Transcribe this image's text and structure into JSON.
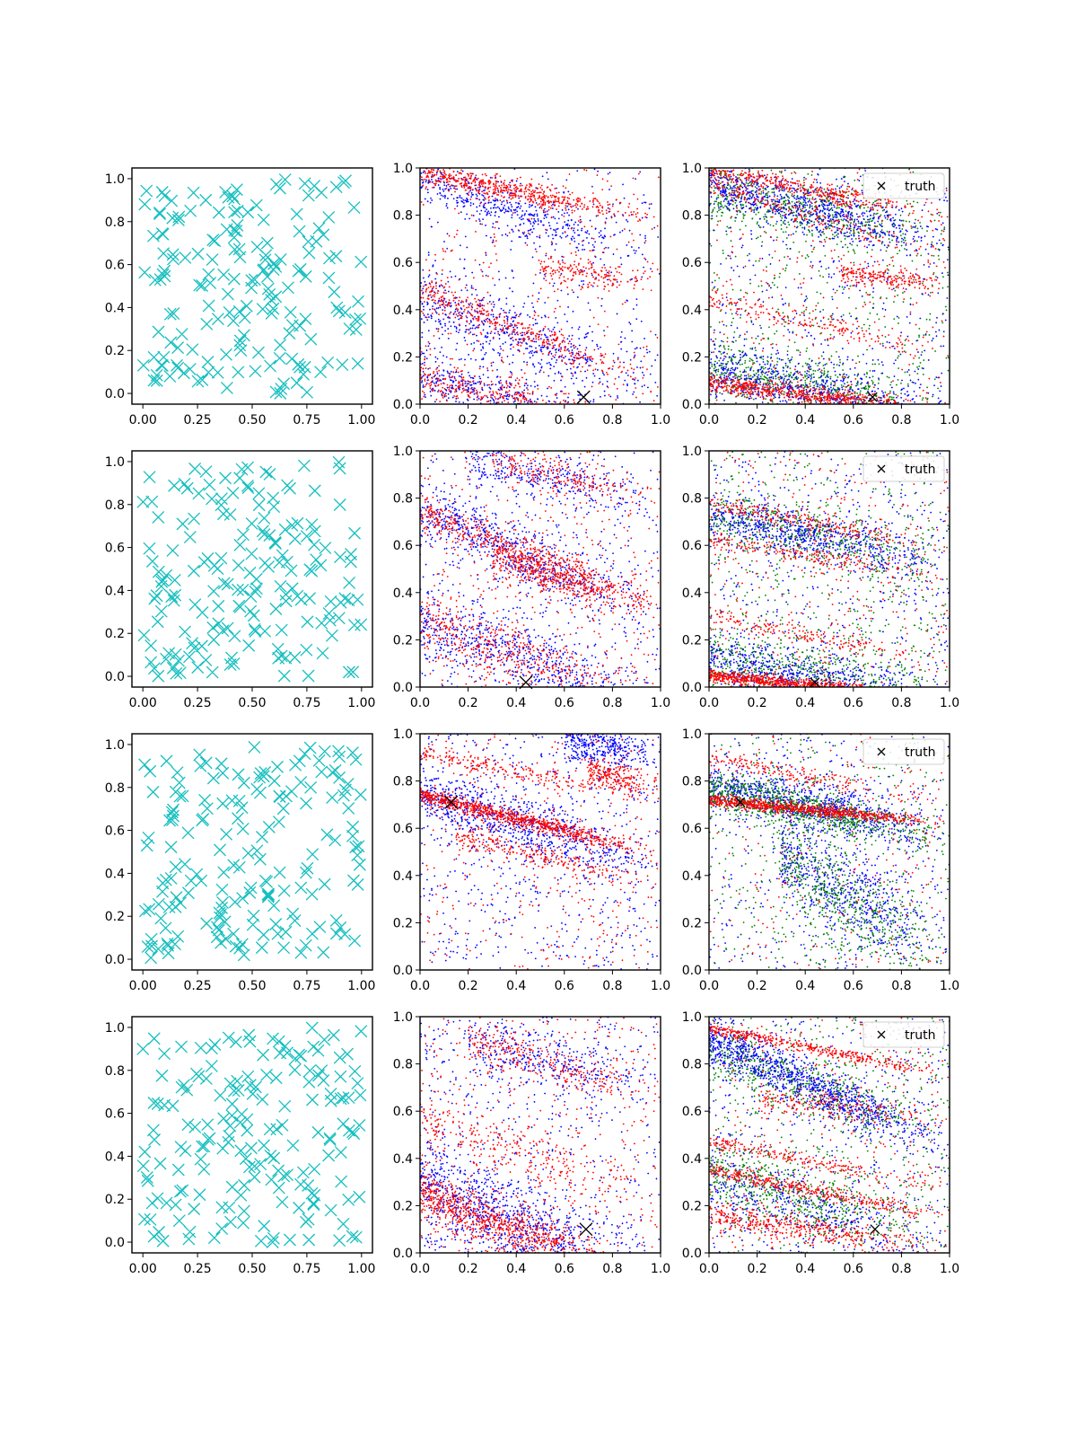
{
  "figure": {
    "rows": 4,
    "columns": 3,
    "description_of_columns": [
      "candidate points",
      "two-colour posterior samples",
      "three-colour posterior samples with truth marker"
    ]
  },
  "chart_data": [
    {
      "type": "scatter",
      "row": 0,
      "col": 0,
      "title": "",
      "xlim": [
        -0.05,
        1.05
      ],
      "ylim": [
        -0.05,
        1.05
      ],
      "xticks": [
        "0.00",
        "0.25",
        "0.50",
        "0.75",
        "1.00"
      ],
      "yticks": [
        "0.0",
        "0.2",
        "0.4",
        "0.6",
        "0.8",
        "1.0"
      ],
      "series": [
        {
          "name": "points",
          "color": "#17bfbf",
          "marker": "x",
          "count": 180,
          "seed": 11
        }
      ]
    },
    {
      "type": "scatter",
      "row": 0,
      "col": 1,
      "title": "",
      "xlim": [
        0,
        1
      ],
      "ylim": [
        0,
        1
      ],
      "xticks": [
        "0.0",
        "0.2",
        "0.4",
        "0.6",
        "0.8",
        "1.0"
      ],
      "yticks": [
        "0.0",
        "0.2",
        "0.4",
        "0.6",
        "0.8",
        "1.0"
      ],
      "series": [
        {
          "name": "blue samples",
          "color": "#0000ff",
          "count": 1800,
          "seed": 21,
          "bands": [
            {
              "x0": 0,
              "y0": 0.96,
              "slope": -0.35,
              "spread": 0.05,
              "weight": 2
            },
            {
              "x0": 0,
              "y0": 0.45,
              "slope": -0.4,
              "spread": 0.07,
              "weight": 2
            },
            {
              "x0": 0,
              "y0": 0.12,
              "slope": -0.3,
              "spread": 0.06,
              "weight": 2
            }
          ]
        },
        {
          "name": "red samples",
          "color": "#ff0000",
          "count": 1800,
          "seed": 22,
          "bands": [
            {
              "x0": 0,
              "y0": 0.98,
              "slope": -0.2,
              "spread": 0.025,
              "weight": 3
            },
            {
              "x0": 0,
              "y0": 0.48,
              "slope": -0.4,
              "spread": 0.03,
              "weight": 2
            },
            {
              "x0": 0,
              "y0": 0.12,
              "slope": -0.25,
              "spread": 0.04,
              "weight": 2
            },
            {
              "x0": 0.5,
              "y0": 0.58,
              "slope": -0.15,
              "spread": 0.03,
              "weight": 1
            }
          ]
        }
      ],
      "truth": {
        "x": 0.68,
        "y": 0.03
      }
    },
    {
      "type": "scatter",
      "row": 0,
      "col": 2,
      "title": "",
      "xlim": [
        0,
        1
      ],
      "ylim": [
        0,
        1
      ],
      "xticks": [
        "0.0",
        "0.2",
        "0.4",
        "0.6",
        "0.8",
        "1.0"
      ],
      "yticks": [
        "0.0",
        "0.2",
        "0.4",
        "0.6",
        "0.8",
        "1.0"
      ],
      "series": [
        {
          "name": "green samples",
          "color": "#008000",
          "count": 1500,
          "seed": 31,
          "bands": [
            {
              "x0": 0,
              "y0": 0.9,
              "slope": -0.2,
              "spread": 0.06,
              "weight": 2
            },
            {
              "x0": 0,
              "y0": 0.15,
              "slope": -0.15,
              "spread": 0.06,
              "weight": 2
            }
          ]
        },
        {
          "name": "blue samples",
          "color": "#0000ff",
          "count": 1800,
          "seed": 32,
          "bands": [
            {
              "x0": 0,
              "y0": 0.93,
              "slope": -0.25,
              "spread": 0.05,
              "weight": 2
            },
            {
              "x0": 0,
              "y0": 0.15,
              "slope": -0.2,
              "spread": 0.06,
              "weight": 2
            }
          ]
        },
        {
          "name": "red samples",
          "color": "#ff0000",
          "count": 1900,
          "seed": 33,
          "bands": [
            {
              "x0": 0,
              "y0": 0.99,
              "slope": -0.2,
              "spread": 0.02,
              "weight": 2
            },
            {
              "x0": 0,
              "y0": 0.92,
              "slope": -0.3,
              "spread": 0.02,
              "weight": 1
            },
            {
              "x0": 0,
              "y0": 0.45,
              "slope": -0.25,
              "spread": 0.025,
              "weight": 1
            },
            {
              "x0": 0,
              "y0": 0.09,
              "slope": -0.12,
              "spread": 0.02,
              "weight": 3
            },
            {
              "x0": 0.55,
              "y0": 0.55,
              "slope": -0.1,
              "spread": 0.02,
              "weight": 1
            }
          ]
        }
      ],
      "truth": {
        "x": 0.68,
        "y": 0.03
      },
      "legend": {
        "label": "truth",
        "location": "upper right"
      }
    },
    {
      "type": "scatter",
      "row": 1,
      "col": 0,
      "title": "",
      "xlim": [
        -0.05,
        1.05
      ],
      "ylim": [
        -0.05,
        1.05
      ],
      "xticks": [
        "0.00",
        "0.25",
        "0.50",
        "0.75",
        "1.00"
      ],
      "yticks": [
        "0.0",
        "0.2",
        "0.4",
        "0.6",
        "0.8",
        "1.0"
      ],
      "series": [
        {
          "name": "points",
          "color": "#17bfbf",
          "marker": "x",
          "count": 180,
          "seed": 12
        }
      ]
    },
    {
      "type": "scatter",
      "row": 1,
      "col": 1,
      "title": "",
      "xlim": [
        0,
        1
      ],
      "ylim": [
        0,
        1
      ],
      "xticks": [
        "0.0",
        "0.2",
        "0.4",
        "0.6",
        "0.8",
        "1.0"
      ],
      "yticks": [
        "0.0",
        "0.2",
        "0.4",
        "0.6",
        "0.8",
        "1.0"
      ],
      "series": [
        {
          "name": "blue samples",
          "color": "#0000ff",
          "count": 1900,
          "seed": 41,
          "bands": [
            {
              "x0": 0,
              "y0": 0.75,
              "slope": -0.45,
              "spread": 0.06,
              "weight": 2
            },
            {
              "x0": 0,
              "y0": 0.28,
              "slope": -0.35,
              "spread": 0.07,
              "weight": 2
            },
            {
              "x0": 0.2,
              "y0": 0.95,
              "slope": -0.2,
              "spread": 0.05,
              "weight": 1
            }
          ]
        },
        {
          "name": "red samples",
          "color": "#ff0000",
          "count": 1900,
          "seed": 42,
          "bands": [
            {
              "x0": 0,
              "y0": 0.74,
              "slope": -0.4,
              "spread": 0.04,
              "weight": 2
            },
            {
              "x0": 0,
              "y0": 0.28,
              "slope": -0.35,
              "spread": 0.06,
              "weight": 2
            },
            {
              "x0": 0.3,
              "y0": 0.55,
              "slope": -0.3,
              "spread": 0.04,
              "weight": 2
            },
            {
              "x0": 0.3,
              "y0": 0.95,
              "slope": -0.2,
              "spread": 0.04,
              "weight": 1
            }
          ]
        }
      ],
      "truth": {
        "x": 0.44,
        "y": 0.02
      }
    },
    {
      "type": "scatter",
      "row": 1,
      "col": 2,
      "title": "",
      "xlim": [
        0,
        1
      ],
      "ylim": [
        0,
        1
      ],
      "xticks": [
        "0.0",
        "0.2",
        "0.4",
        "0.6",
        "0.8",
        "1.0"
      ],
      "yticks": [
        "0.0",
        "0.2",
        "0.4",
        "0.6",
        "0.8",
        "1.0"
      ],
      "series": [
        {
          "name": "green samples",
          "color": "#008000",
          "count": 1500,
          "seed": 51,
          "bands": [
            {
              "x0": 0,
              "y0": 0.72,
              "slope": -0.2,
              "spread": 0.06,
              "weight": 2
            },
            {
              "x0": 0,
              "y0": 0.12,
              "slope": -0.15,
              "spread": 0.07,
              "weight": 2
            }
          ]
        },
        {
          "name": "blue samples",
          "color": "#0000ff",
          "count": 1700,
          "seed": 52,
          "bands": [
            {
              "x0": 0,
              "y0": 0.72,
              "slope": -0.2,
              "spread": 0.05,
              "weight": 2
            },
            {
              "x0": 0,
              "y0": 0.12,
              "slope": -0.2,
              "spread": 0.06,
              "weight": 2
            }
          ]
        },
        {
          "name": "red samples",
          "color": "#ff0000",
          "count": 1800,
          "seed": 53,
          "bands": [
            {
              "x0": 0,
              "y0": 0.78,
              "slope": -0.2,
              "spread": 0.02,
              "weight": 1
            },
            {
              "x0": 0,
              "y0": 0.62,
              "slope": -0.15,
              "spread": 0.02,
              "weight": 1
            },
            {
              "x0": 0,
              "y0": 0.3,
              "slope": -0.2,
              "spread": 0.02,
              "weight": 1
            },
            {
              "x0": 0,
              "y0": 0.05,
              "slope": -0.1,
              "spread": 0.012,
              "weight": 4
            }
          ]
        }
      ],
      "truth": {
        "x": 0.44,
        "y": 0.02
      },
      "legend": {
        "label": "truth",
        "location": "upper right"
      }
    },
    {
      "type": "scatter",
      "row": 2,
      "col": 0,
      "title": "",
      "xlim": [
        -0.05,
        1.05
      ],
      "ylim": [
        -0.05,
        1.05
      ],
      "xticks": [
        "0.00",
        "0.25",
        "0.50",
        "0.75",
        "1.00"
      ],
      "yticks": [
        "0.0",
        "0.2",
        "0.4",
        "0.6",
        "0.8",
        "1.0"
      ],
      "series": [
        {
          "name": "points",
          "color": "#17bfbf",
          "marker": "x",
          "count": 180,
          "seed": 13
        }
      ]
    },
    {
      "type": "scatter",
      "row": 2,
      "col": 1,
      "title": "",
      "xlim": [
        0,
        1
      ],
      "ylim": [
        0,
        1
      ],
      "xticks": [
        "0.0",
        "0.2",
        "0.4",
        "0.6",
        "0.8",
        "1.0"
      ],
      "yticks": [
        "0.0",
        "0.2",
        "0.4",
        "0.6",
        "0.8",
        "1.0"
      ],
      "series": [
        {
          "name": "blue samples",
          "color": "#0000ff",
          "count": 1700,
          "seed": 61,
          "bands": [
            {
              "x0": 0,
              "y0": 0.74,
              "slope": -0.3,
              "spread": 0.06,
              "weight": 2
            },
            {
              "x0": 0.6,
              "y0": 0.96,
              "slope": -0.1,
              "spread": 0.04,
              "weight": 1
            }
          ]
        },
        {
          "name": "red samples",
          "color": "#ff0000",
          "count": 1900,
          "seed": 62,
          "bands": [
            {
              "x0": 0,
              "y0": 0.74,
              "slope": -0.25,
              "spread": 0.018,
              "weight": 4
            },
            {
              "x0": 0,
              "y0": 0.92,
              "slope": -0.2,
              "spread": 0.02,
              "weight": 1
            },
            {
              "x0": 0.15,
              "y0": 0.57,
              "slope": -0.25,
              "spread": 0.025,
              "weight": 1
            },
            {
              "x0": 0.7,
              "y0": 0.85,
              "slope": -0.3,
              "spread": 0.03,
              "weight": 1
            }
          ]
        }
      ],
      "truth": {
        "x": 0.13,
        "y": 0.71
      }
    },
    {
      "type": "scatter",
      "row": 2,
      "col": 2,
      "title": "",
      "xlim": [
        0,
        1
      ],
      "ylim": [
        0,
        1
      ],
      "xticks": [
        "0.0",
        "0.2",
        "0.4",
        "0.6",
        "0.8",
        "1.0"
      ],
      "yticks": [
        "0.0",
        "0.2",
        "0.4",
        "0.6",
        "0.8",
        "1.0"
      ],
      "series": [
        {
          "name": "blue samples",
          "color": "#0000ff",
          "count": 1900,
          "seed": 71,
          "bands": [
            {
              "x0": 0,
              "y0": 0.78,
              "slope": -0.2,
              "spread": 0.05,
              "weight": 3
            },
            {
              "x0": 0.3,
              "y0": 0.5,
              "slope": -0.6,
              "spread": 0.1,
              "weight": 2
            }
          ]
        },
        {
          "name": "green samples",
          "color": "#008000",
          "count": 1700,
          "seed": 72,
          "bands": [
            {
              "x0": 0,
              "y0": 0.76,
              "slope": -0.2,
              "spread": 0.04,
              "weight": 3
            },
            {
              "x0": 0.3,
              "y0": 0.45,
              "slope": -0.6,
              "spread": 0.12,
              "weight": 2
            }
          ]
        },
        {
          "name": "red samples",
          "color": "#ff0000",
          "count": 1200,
          "seed": 73,
          "bands": [
            {
              "x0": 0,
              "y0": 0.72,
              "slope": -0.1,
              "spread": 0.012,
              "weight": 5
            },
            {
              "x0": 0,
              "y0": 0.9,
              "slope": -0.2,
              "spread": 0.02,
              "weight": 1
            }
          ]
        }
      ],
      "truth": {
        "x": 0.13,
        "y": 0.71
      },
      "legend": {
        "label": "truth",
        "location": "upper right"
      }
    },
    {
      "type": "scatter",
      "row": 3,
      "col": 0,
      "title": "",
      "xlim": [
        -0.05,
        1.05
      ],
      "ylim": [
        -0.05,
        1.05
      ],
      "xticks": [
        "0.00",
        "0.25",
        "0.50",
        "0.75",
        "1.00"
      ],
      "yticks": [
        "0.0",
        "0.2",
        "0.4",
        "0.6",
        "0.8",
        "1.0"
      ],
      "series": [
        {
          "name": "points",
          "color": "#17bfbf",
          "marker": "x",
          "count": 180,
          "seed": 14
        }
      ]
    },
    {
      "type": "scatter",
      "row": 3,
      "col": 1,
      "title": "",
      "xlim": [
        0,
        1
      ],
      "ylim": [
        0,
        1
      ],
      "xticks": [
        "0.0",
        "0.2",
        "0.4",
        "0.6",
        "0.8",
        "1.0"
      ],
      "yticks": [
        "0.0",
        "0.2",
        "0.4",
        "0.6",
        "0.8",
        "1.0"
      ],
      "series": [
        {
          "name": "blue samples",
          "color": "#0000ff",
          "count": 1800,
          "seed": 81,
          "bands": [
            {
              "x0": 0,
              "y0": 0.3,
              "slope": -0.45,
              "spread": 0.1,
              "weight": 3
            },
            {
              "x0": 0.2,
              "y0": 0.9,
              "slope": -0.25,
              "spread": 0.06,
              "weight": 1
            }
          ]
        },
        {
          "name": "red samples",
          "color": "#ff0000",
          "count": 1900,
          "seed": 82,
          "bands": [
            {
              "x0": 0,
              "y0": 0.25,
              "slope": -0.4,
              "spread": 0.05,
              "weight": 4
            },
            {
              "x0": 0,
              "y0": 0.55,
              "slope": -0.3,
              "spread": 0.06,
              "weight": 1
            },
            {
              "x0": 0.2,
              "y0": 0.9,
              "slope": -0.3,
              "spread": 0.04,
              "weight": 1
            }
          ]
        }
      ],
      "truth": {
        "x": 0.69,
        "y": 0.1
      }
    },
    {
      "type": "scatter",
      "row": 3,
      "col": 2,
      "title": "",
      "xlim": [
        0,
        1
      ],
      "ylim": [
        0,
        1
      ],
      "xticks": [
        "0.0",
        "0.2",
        "0.4",
        "0.6",
        "0.8",
        "1.0"
      ],
      "yticks": [
        "0.0",
        "0.2",
        "0.4",
        "0.6",
        "0.8",
        "1.0"
      ],
      "series": [
        {
          "name": "green samples",
          "color": "#008000",
          "count": 1500,
          "seed": 91,
          "bands": [
            {
              "x0": 0,
              "y0": 0.85,
              "slope": -0.35,
              "spread": 0.06,
              "weight": 2
            },
            {
              "x0": 0,
              "y0": 0.35,
              "slope": -0.3,
              "spread": 0.08,
              "weight": 2
            }
          ]
        },
        {
          "name": "blue samples",
          "color": "#0000ff",
          "count": 1800,
          "seed": 92,
          "bands": [
            {
              "x0": 0,
              "y0": 0.9,
              "slope": -0.45,
              "spread": 0.05,
              "weight": 3
            },
            {
              "x0": 0,
              "y0": 0.3,
              "slope": -0.3,
              "spread": 0.07,
              "weight": 1
            }
          ]
        },
        {
          "name": "red samples",
          "color": "#ff0000",
          "count": 1900,
          "seed": 93,
          "bands": [
            {
              "x0": 0,
              "y0": 0.95,
              "slope": -0.2,
              "spread": 0.012,
              "weight": 2
            },
            {
              "x0": 0,
              "y0": 0.47,
              "slope": -0.2,
              "spread": 0.015,
              "weight": 1
            },
            {
              "x0": 0,
              "y0": 0.35,
              "slope": -0.2,
              "spread": 0.015,
              "weight": 2
            },
            {
              "x0": 0,
              "y0": 0.16,
              "slope": -0.15,
              "spread": 0.03,
              "weight": 2
            },
            {
              "x0": 0.2,
              "y0": 0.65,
              "slope": -0.1,
              "spread": 0.03,
              "weight": 1
            }
          ]
        }
      ],
      "truth": {
        "x": 0.69,
        "y": 0.1
      },
      "legend": {
        "label": "truth",
        "location": "upper right"
      }
    }
  ]
}
